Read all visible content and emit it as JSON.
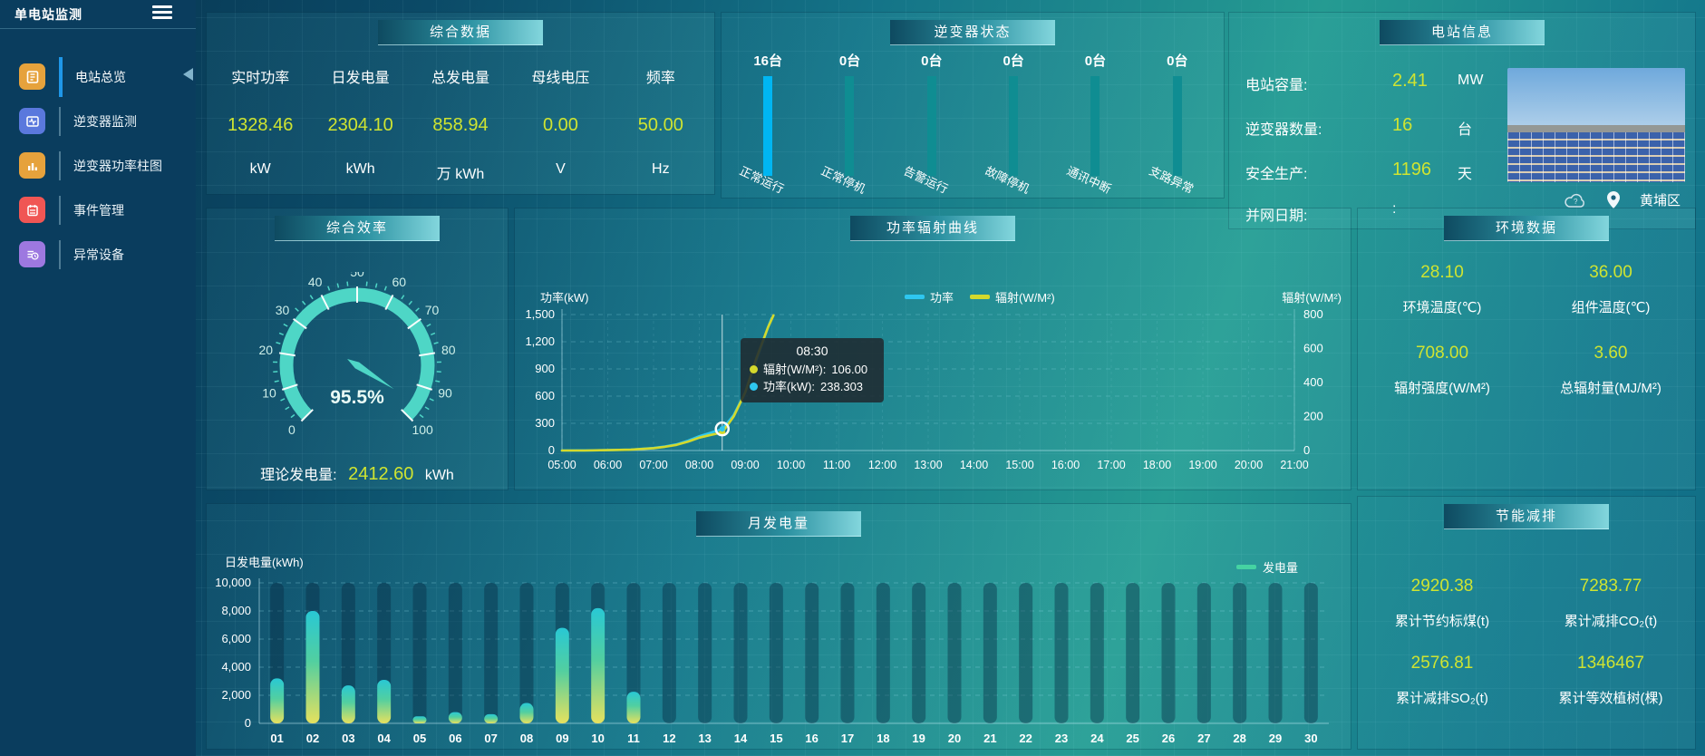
{
  "colors": {
    "value_accent": "#cfe431",
    "power_line": "#2ec7f0",
    "radiation_line": "#d4d92c",
    "inverter_bar_highlight": "#00b6f2",
    "inverter_bar_normal": "#0f8d92",
    "gauge": "#4ed6c6",
    "monthly_bar_top": "#29c8d4",
    "monthly_bar_mid": "#52cfa0",
    "monthly_bar_bottom": "#e6e15e"
  },
  "sidebar": {
    "title": "单电站监测",
    "items": [
      {
        "label": "电站总览",
        "icon": "station-overview-icon",
        "icon_bg": "#e6a23c",
        "active": true
      },
      {
        "label": "逆变器监测",
        "icon": "inverter-monitor-icon",
        "icon_bg": "#5a78dd",
        "active": false
      },
      {
        "label": "逆变器功率柱图",
        "icon": "inverter-power-bars-icon",
        "icon_bg": "#e6a23c",
        "active": false
      },
      {
        "label": "事件管理",
        "icon": "event-management-icon",
        "icon_bg": "#f05654",
        "active": false
      },
      {
        "label": "异常设备",
        "icon": "abnormal-device-icon",
        "icon_bg": "#9d78e0",
        "active": false
      }
    ]
  },
  "summary_panel": {
    "title": "综合数据",
    "items": [
      {
        "label": "实时功率",
        "value": "1328.46",
        "unit": "kW"
      },
      {
        "label": "日发电量",
        "value": "2304.10",
        "unit": "kWh"
      },
      {
        "label": "总发电量",
        "value": "858.94",
        "unit": "万 kWh"
      },
      {
        "label": "母线电压",
        "value": "0.00",
        "unit": "V"
      },
      {
        "label": "频率",
        "value": "50.00",
        "unit": "Hz"
      }
    ]
  },
  "inverter_panel": {
    "title": "逆变器状态",
    "items": [
      {
        "count": "16台",
        "label": "正常运行",
        "highlight": true
      },
      {
        "count": "0台",
        "label": "正常停机",
        "highlight": false
      },
      {
        "count": "0台",
        "label": "告警运行",
        "highlight": false
      },
      {
        "count": "0台",
        "label": "故障停机",
        "highlight": false
      },
      {
        "count": "0台",
        "label": "通讯中断",
        "highlight": false
      },
      {
        "count": "0台",
        "label": "支路异常",
        "highlight": false
      }
    ]
  },
  "station_panel": {
    "title": "电站信息",
    "rows": [
      {
        "label": "电站容量:",
        "value": "2.41",
        "unit": "MW"
      },
      {
        "label": "逆变器数量:",
        "value": "16",
        "unit": "台"
      },
      {
        "label": "安全生产:",
        "value": "1196",
        "unit": "天"
      },
      {
        "label": "并网日期:",
        "value": ":",
        "unit": ""
      }
    ],
    "location": "黄埔区"
  },
  "efficiency_panel": {
    "title": "综合效率",
    "gauge": {
      "min": 0,
      "max": 100,
      "step": 10,
      "value": 95.5,
      "display": "95.5%"
    },
    "footer_label": "理论发电量:",
    "footer_value": "2412.60",
    "footer_unit": "kWh"
  },
  "power_panel": {
    "title": "功率辐射曲线",
    "left_axis_label": "功率(kW)",
    "right_axis_label": "辐射(W/M²)",
    "legend": [
      {
        "label": "功率",
        "color": "#2ec7f0"
      },
      {
        "label": "辐射(W/M²)",
        "color": "#d4d92c"
      }
    ],
    "tooltip": {
      "time": "08:30",
      "rows": [
        {
          "label": "辐射(W/M²):",
          "value": "106.00",
          "color": "#d4d92c"
        },
        {
          "label": "功率(kW):",
          "value": "238.303",
          "color": "#2ec7f0"
        }
      ]
    },
    "chart_data": {
      "type": "line",
      "x_ticks": [
        "05:00",
        "06:00",
        "07:00",
        "08:00",
        "09:00",
        "10:00",
        "11:00",
        "12:00",
        "13:00",
        "14:00",
        "15:00",
        "16:00",
        "17:00",
        "18:00",
        "19:00",
        "20:00",
        "21:00"
      ],
      "x_range": [
        5,
        21
      ],
      "left_axis": {
        "min": 0,
        "max": 1500,
        "tick_labels": [
          "0",
          "300",
          "600",
          "900",
          "1,200",
          "1,500"
        ]
      },
      "right_axis": {
        "min": 0,
        "max": 800,
        "tick_labels": [
          "0",
          "200",
          "400",
          "600",
          "800"
        ]
      },
      "series": [
        {
          "name": "功率",
          "axis": "left",
          "color": "#2ec7f0",
          "points": [
            [
              5,
              0
            ],
            [
              5.5,
              1
            ],
            [
              6,
              4
            ],
            [
              6.5,
              10
            ],
            [
              7,
              28
            ],
            [
              7.25,
              45
            ],
            [
              7.5,
              68
            ],
            [
              7.75,
              108
            ],
            [
              8,
              158
            ],
            [
              8.25,
              196
            ],
            [
              8.5,
              238.3
            ],
            [
              8.75,
              390
            ],
            [
              9,
              640
            ],
            [
              9.25,
              1000
            ],
            [
              9.5,
              1360
            ],
            [
              9.58,
              1460
            ]
          ]
        },
        {
          "name": "辐射(W/M²)",
          "axis": "right",
          "color": "#d4d92c",
          "points": [
            [
              5,
              0
            ],
            [
              5.5,
              0
            ],
            [
              6,
              2
            ],
            [
              6.5,
              5
            ],
            [
              7,
              14
            ],
            [
              7.25,
              22
            ],
            [
              7.5,
              33
            ],
            [
              7.75,
              52
            ],
            [
              8,
              76
            ],
            [
              8.25,
              92
            ],
            [
              8.5,
              106
            ],
            [
              8.75,
              200
            ],
            [
              9,
              340
            ],
            [
              9.25,
              545
            ],
            [
              9.5,
              725
            ],
            [
              9.62,
              795
            ]
          ]
        }
      ],
      "hover_x": 8.5,
      "hover_power": 238.3,
      "hover_radiation": 106
    }
  },
  "env_panel": {
    "title": "环境数据",
    "items": [
      {
        "value": "28.10",
        "label": "环境温度(℃)"
      },
      {
        "value": "36.00",
        "label": "组件温度(℃)"
      },
      {
        "value": "708.00",
        "label": "辐射强度(W/M²)"
      },
      {
        "value": "3.60",
        "label": "总辐射量(MJ/M²)"
      }
    ]
  },
  "monthly_panel": {
    "title": "月发电量",
    "ylabel": "日发电量(kWh)",
    "legend": "发电量",
    "chart_data": {
      "type": "bar",
      "categories": [
        "01",
        "02",
        "03",
        "04",
        "05",
        "06",
        "07",
        "08",
        "09",
        "10",
        "11",
        "12",
        "13",
        "14",
        "15",
        "16",
        "17",
        "18",
        "19",
        "20",
        "21",
        "22",
        "23",
        "24",
        "25",
        "26",
        "27",
        "28",
        "29",
        "30"
      ],
      "values": [
        3200,
        8000,
        2700,
        3100,
        500,
        800,
        650,
        1450,
        6800,
        8200,
        2250,
        0,
        0,
        0,
        0,
        0,
        0,
        0,
        0,
        0,
        0,
        0,
        0,
        0,
        0,
        0,
        0,
        0,
        0,
        0
      ],
      "ylim": [
        0,
        10000
      ],
      "ytick_labels": [
        "0",
        "2,000",
        "4,000",
        "6,000",
        "8,000",
        "10,000"
      ]
    }
  },
  "energy_panel": {
    "title": "节能减排",
    "items": [
      {
        "value": "2920.38",
        "label": "累计节约标煤(t)"
      },
      {
        "value": "7283.77",
        "label": "累计减排CO₂(t)"
      },
      {
        "value": "2576.81",
        "label": "累计减排SO₂(t)"
      },
      {
        "value": "1346467",
        "label": "累计等效植树(棵)"
      }
    ]
  }
}
